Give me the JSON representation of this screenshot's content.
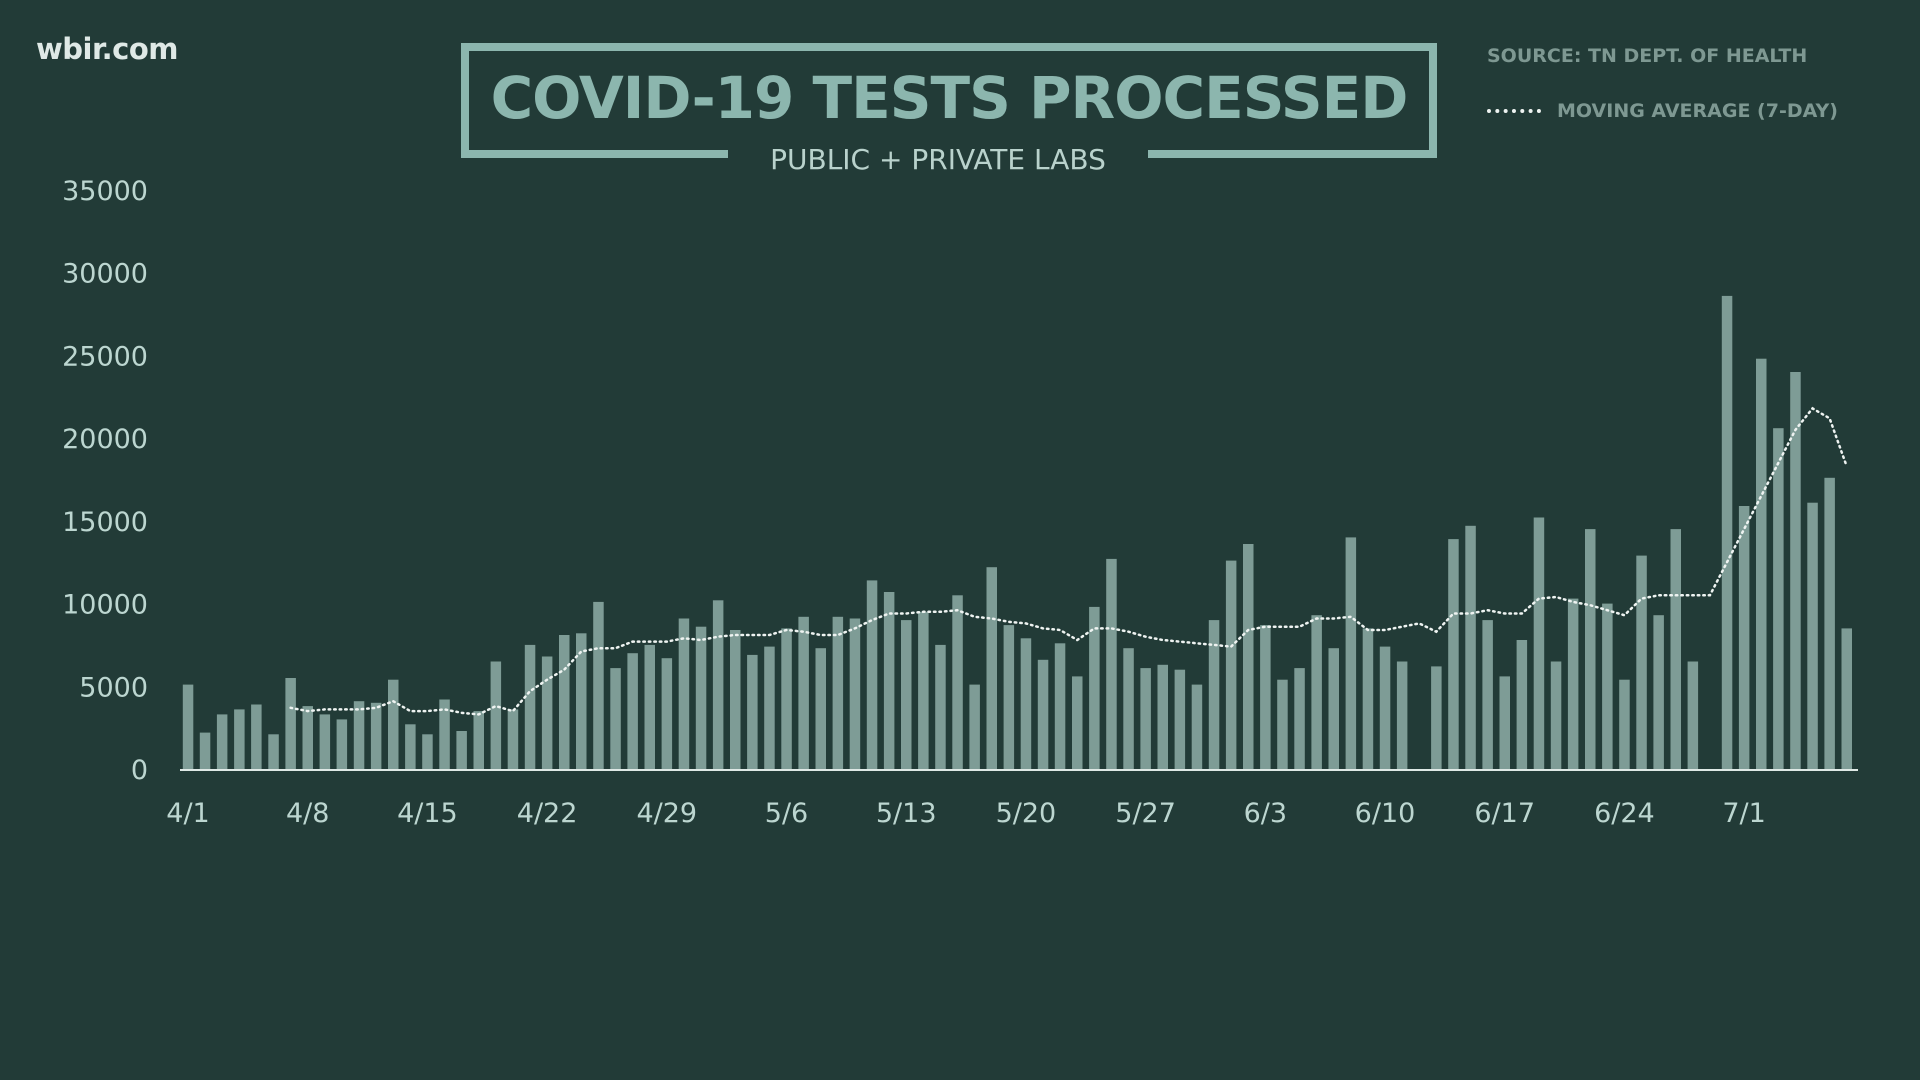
{
  "header": {
    "brand": "wbir.com",
    "title": "COVID-19 TESTS PROCESSED",
    "subtitle": "PUBLIC + PRIVATE LABS",
    "source": "SOURCE: TN DEPT. OF HEALTH",
    "legend_label": "MOVING AVERAGE (7-DAY)"
  },
  "colors": {
    "background": "#223b37",
    "bar": "#7e9c96",
    "title": "#8cb6ae",
    "axis_text": "#bcd6d0",
    "average_line": "#eef3f1"
  },
  "chart_data": {
    "type": "bar",
    "title": "COVID-19 TESTS PROCESSED",
    "subtitle": "PUBLIC + PRIVATE LABS",
    "xlabel": "",
    "ylabel": "",
    "ylim": [
      0,
      35000
    ],
    "y_ticks": [
      0,
      5000,
      10000,
      15000,
      20000,
      25000,
      30000,
      35000
    ],
    "x_tick_labels": [
      "4/1",
      "4/8",
      "4/15",
      "4/22",
      "4/29",
      "5/6",
      "5/13",
      "5/20",
      "5/27",
      "6/3",
      "6/10",
      "6/17",
      "6/24",
      "7/1"
    ],
    "grid": false,
    "legend_position": "top-right",
    "start_date": "2020-04-01",
    "series": [
      {
        "name": "Tests processed",
        "type": "bar",
        "values": [
          5100,
          2200,
          3300,
          3600,
          3900,
          2100,
          5500,
          3800,
          3300,
          3000,
          4100,
          4000,
          5400,
          2700,
          2100,
          4200,
          2300,
          3500,
          6500,
          3600,
          7500,
          6800,
          8100,
          8200,
          10100,
          6100,
          7000,
          7500,
          6700,
          9100,
          8600,
          10200,
          8400,
          6900,
          7400,
          8500,
          9200,
          7300,
          9200,
          9100,
          11400,
          10700,
          9000,
          9500,
          7500,
          10500,
          5100,
          12200,
          8700,
          7900,
          6600,
          7600,
          5600,
          9800,
          12700,
          7300,
          6100,
          6300,
          6000,
          5100,
          9000,
          12600,
          13600,
          8700,
          5400,
          6100,
          9300,
          7300,
          14000,
          8500,
          7400,
          6500,
          0,
          6200,
          13900,
          14700,
          9000,
          5600,
          7800,
          15200,
          6500,
          10300,
          14500,
          10000,
          5400,
          12900,
          9300,
          14500,
          6500,
          0,
          28600,
          15900,
          24800,
          20600,
          24000,
          16100,
          17600,
          8500
        ]
      },
      {
        "name": "MOVING AVERAGE (7-DAY)",
        "type": "line",
        "style": "dotted",
        "values": [
          null,
          null,
          null,
          null,
          null,
          null,
          3700,
          3500,
          3600,
          3600,
          3600,
          3700,
          4100,
          3500,
          3500,
          3600,
          3400,
          3300,
          3800,
          3500,
          4700,
          5400,
          6000,
          7100,
          7300,
          7300,
          7700,
          7700,
          7700,
          7900,
          7800,
          8000,
          8100,
          8100,
          8100,
          8400,
          8300,
          8100,
          8100,
          8500,
          9000,
          9400,
          9400,
          9500,
          9500,
          9600,
          9200,
          9100,
          8900,
          8800,
          8500,
          8400,
          7800,
          8500,
          8500,
          8300,
          8000,
          7800,
          7700,
          7600,
          7500,
          7400,
          8400,
          8600,
          8600,
          8600,
          9100,
          9100,
          9200,
          8400,
          8400,
          8600,
          8800,
          8300,
          9400,
          9400,
          9600,
          9400,
          9400,
          10300,
          10400,
          10100,
          9900,
          9600,
          9300,
          10300,
          10500,
          10500,
          10500,
          10500,
          12500,
          14500,
          16500,
          18500,
          20500,
          21800,
          21200,
          18300
        ]
      }
    ]
  }
}
